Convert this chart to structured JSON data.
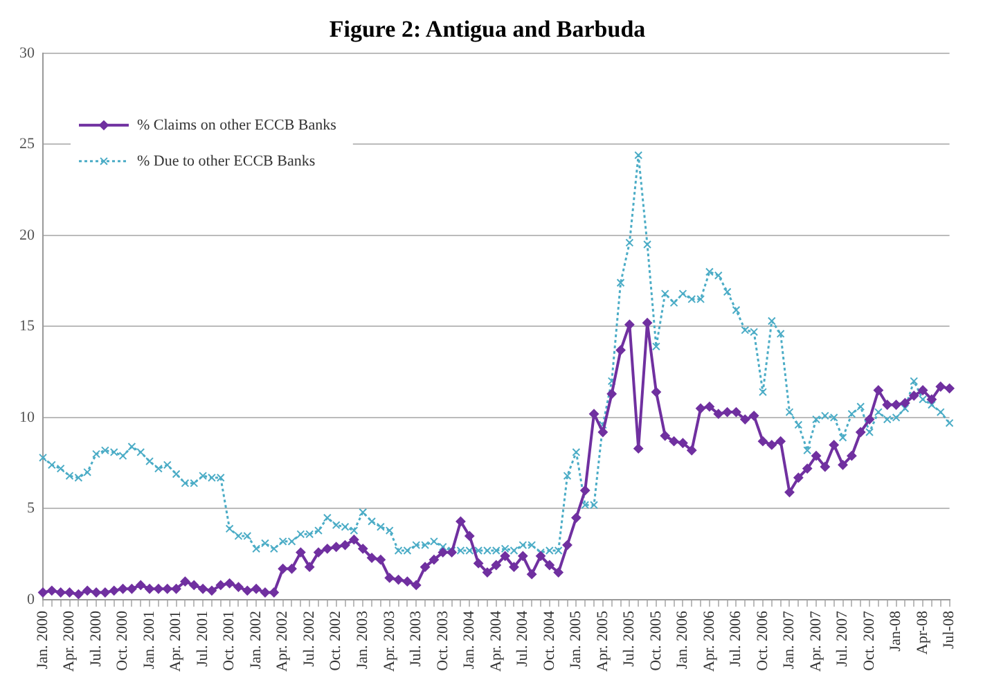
{
  "chart_data": {
    "type": "line",
    "title": "Figure 2: Antigua and Barbuda",
    "categories": [
      "Jan. 2000",
      null,
      null,
      "Apr. 2000",
      null,
      null,
      "Jul. 2000",
      null,
      null,
      "Oct. 2000",
      null,
      null,
      "Jan. 2001",
      null,
      null,
      "Apr. 2001",
      null,
      null,
      "Jul. 2001",
      null,
      null,
      "Oct. 2001",
      null,
      null,
      "Jan. 2002",
      null,
      null,
      "Apr. 2002",
      null,
      null,
      "Jul. 2002",
      null,
      null,
      "Oct. 2002",
      null,
      null,
      "Jan. 2003",
      null,
      null,
      "Apr. 2003",
      null,
      null,
      "Jul. 2003",
      null,
      null,
      "Oct. 2003",
      null,
      null,
      "Jan. 2004",
      null,
      null,
      "Apr. 2004",
      null,
      null,
      "Jul. 2004",
      null,
      null,
      "Oct. 2004",
      null,
      null,
      "Jan. 2005",
      null,
      null,
      "Apr. 2005",
      null,
      null,
      "Jul. 2005",
      null,
      null,
      "Oct. 2005",
      null,
      null,
      "Jan. 2006",
      null,
      null,
      "Apr. 2006",
      null,
      null,
      "Jul. 2006",
      null,
      null,
      "Oct. 2006",
      null,
      null,
      "Jan. 2007",
      null,
      null,
      "Apr. 2007",
      null,
      null,
      "Jul. 2007",
      null,
      null,
      "Oct. 2007",
      null,
      null,
      "Jan-08",
      null,
      null,
      "Apr-08",
      null,
      null,
      "Jul-08"
    ],
    "series": [
      {
        "name": "% Claims on other ECCB Banks",
        "color": "#7030a0",
        "marker": "diamond",
        "line_style": "solid",
        "values": [
          0.4,
          0.5,
          0.4,
          0.4,
          0.3,
          0.5,
          0.4,
          0.4,
          0.5,
          0.6,
          0.6,
          0.8,
          0.6,
          0.6,
          0.6,
          0.6,
          1.0,
          0.8,
          0.6,
          0.5,
          0.8,
          0.9,
          0.7,
          0.5,
          0.6,
          0.4,
          0.4,
          1.7,
          1.7,
          2.6,
          1.8,
          2.6,
          2.8,
          2.9,
          3.0,
          3.3,
          2.8,
          2.3,
          2.2,
          1.2,
          1.1,
          1.0,
          0.8,
          1.8,
          2.2,
          2.6,
          2.6,
          4.3,
          3.5,
          2.0,
          1.5,
          1.9,
          2.4,
          1.8,
          2.4,
          1.4,
          2.4,
          1.9,
          1.5,
          3.0,
          4.5,
          6.0,
          10.2,
          9.2,
          11.3,
          13.7,
          15.1,
          8.3,
          15.2,
          11.4,
          9.0,
          8.7,
          8.6,
          8.2,
          10.5,
          10.6,
          10.2,
          10.3,
          10.3,
          9.9,
          10.1,
          8.7,
          8.5,
          8.7,
          5.9,
          6.7,
          7.2,
          7.9,
          7.3,
          8.5,
          7.4,
          7.9,
          9.2,
          9.9,
          11.5,
          10.7,
          10.7,
          10.8,
          11.2,
          11.5,
          11.0,
          11.7,
          11.6
        ]
      },
      {
        "name": "% Due to other ECCB Banks",
        "color": "#4bacc6",
        "marker": "cross",
        "line_style": "dotted",
        "values": [
          7.8,
          7.4,
          7.2,
          6.8,
          6.7,
          7.0,
          8.0,
          8.2,
          8.1,
          7.9,
          8.4,
          8.1,
          7.6,
          7.2,
          7.4,
          6.9,
          6.4,
          6.4,
          6.8,
          6.7,
          6.7,
          3.9,
          3.5,
          3.5,
          2.8,
          3.1,
          2.8,
          3.2,
          3.2,
          3.6,
          3.6,
          3.8,
          4.5,
          4.1,
          4.0,
          3.8,
          4.8,
          4.3,
          4.0,
          3.8,
          2.7,
          2.7,
          3.0,
          3.0,
          3.2,
          2.9,
          2.7,
          2.7,
          2.7,
          2.7,
          2.7,
          2.7,
          2.8,
          2.7,
          3.0,
          3.0,
          2.6,
          2.7,
          2.7,
          6.8,
          8.1,
          5.2,
          5.2,
          9.6,
          12.0,
          17.4,
          19.6,
          24.4,
          19.5,
          13.9,
          16.8,
          16.3,
          16.8,
          16.5,
          16.5,
          18.0,
          17.8,
          16.9,
          15.9,
          14.8,
          14.7,
          11.4,
          15.3,
          14.6,
          10.3,
          9.6,
          8.2,
          9.9,
          10.1,
          10.0,
          8.9,
          10.2,
          10.6,
          9.2,
          10.3,
          9.9,
          10.0,
          10.5,
          12.0,
          11.0,
          10.7,
          10.3,
          9.7
        ]
      }
    ],
    "ylim": [
      0,
      30
    ],
    "yticks": [
      0,
      5,
      10,
      15,
      20,
      25,
      30
    ],
    "grid": "y",
    "legend": "top left"
  }
}
